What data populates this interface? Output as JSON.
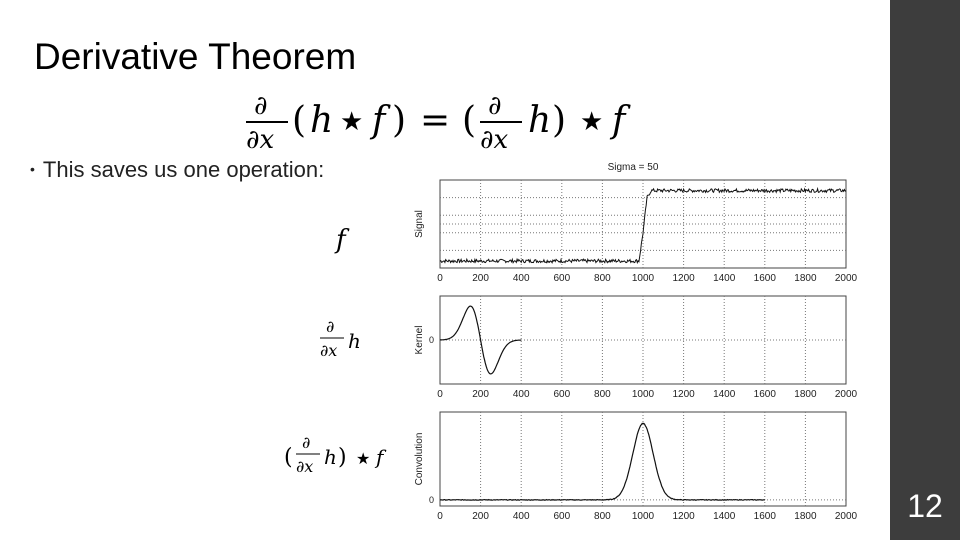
{
  "slide": {
    "title": "Derivative Theorem",
    "slide_number": "12",
    "bullet": "This saves us one operation:",
    "sidebar_color": "#3d3d3d"
  },
  "chart_data": [
    {
      "type": "line",
      "title": "Sigma = 50",
      "ylabel": "Signal",
      "xlim": [
        0,
        2000
      ],
      "x_ticks": [
        "0",
        "200",
        "400",
        "600",
        "800",
        "1000",
        "1200",
        "1400",
        "1600",
        "1800",
        "2000"
      ],
      "series": [
        {
          "x": [
            0,
            980,
            1000,
            1020,
            1040,
            2000
          ],
          "y": [
            0,
            0,
            0.4,
            0.9,
            1,
            1
          ],
          "noise": true
        }
      ]
    },
    {
      "type": "line",
      "ylabel": "Kernel",
      "y_ticks": [
        "0"
      ],
      "xlim": [
        0,
        2000
      ],
      "x_ticks": [
        "0",
        "200",
        "400",
        "600",
        "800",
        "1000",
        "1200",
        "1400",
        "1600",
        "1800",
        "2000"
      ],
      "series": [
        {
          "description": "derivative of gaussian, center 200, sigma 50",
          "center": 200,
          "sigma": 50
        }
      ]
    },
    {
      "type": "line",
      "ylabel": "Convolution",
      "y_ticks": [
        "0"
      ],
      "xlim": [
        0,
        2000
      ],
      "x_ticks": [
        "0",
        "200",
        "400",
        "600",
        "800",
        "1000",
        "1200",
        "1400",
        "1600",
        "1800",
        "2000"
      ],
      "series": [
        {
          "description": "gaussian peak at 1000",
          "center": 1000,
          "sigma": 50,
          "x_end": 1600
        }
      ]
    }
  ]
}
